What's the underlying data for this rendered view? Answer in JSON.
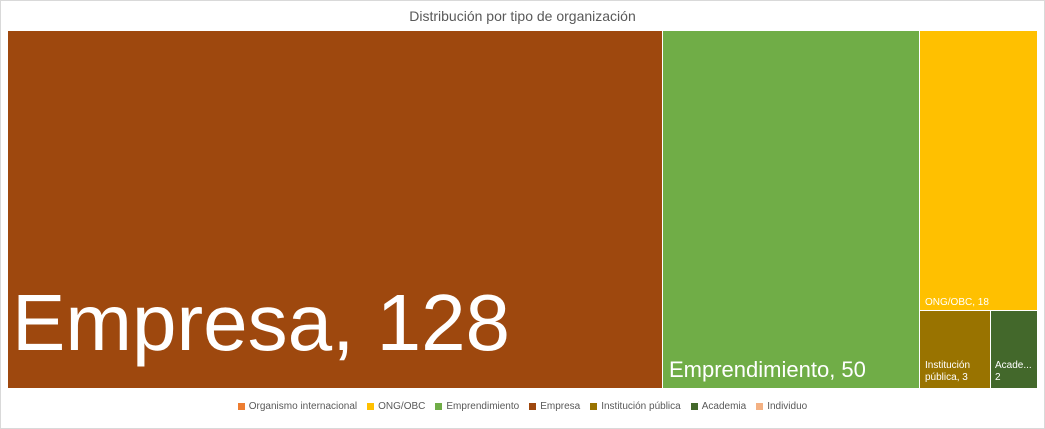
{
  "chart_data": {
    "type": "treemap",
    "title": "Distribución por tipo de organización",
    "items": [
      {
        "name": "Empresa",
        "value": 128,
        "label": "Empresa, 128",
        "color": "#9E480E"
      },
      {
        "name": "Emprendimiento",
        "value": 50,
        "label": "Emprendimiento, 50",
        "color": "#70AD47"
      },
      {
        "name": "ONG/OBC",
        "value": 18,
        "label": "ONG/OBC, 18",
        "color": "#FFC000"
      },
      {
        "name": "Institución pública",
        "value": 3,
        "label_lines": [
          "Institución",
          "pública, 3"
        ],
        "color": "#997300"
      },
      {
        "name": "Academia",
        "value": 2,
        "label_lines": [
          "Acade...",
          "2"
        ],
        "color": "#43682B"
      }
    ],
    "legend": [
      {
        "name": "Organismo internacional",
        "color": "#ED7D31"
      },
      {
        "name": "ONG/OBC",
        "color": "#FFC000"
      },
      {
        "name": "Emprendimiento",
        "color": "#70AD47"
      },
      {
        "name": "Empresa",
        "color": "#9E480E"
      },
      {
        "name": "Institución pública",
        "color": "#997300"
      },
      {
        "name": "Academia",
        "color": "#43682B"
      },
      {
        "name": "Individuo",
        "color": "#F4B183"
      }
    ],
    "legend_position": "bottom"
  }
}
